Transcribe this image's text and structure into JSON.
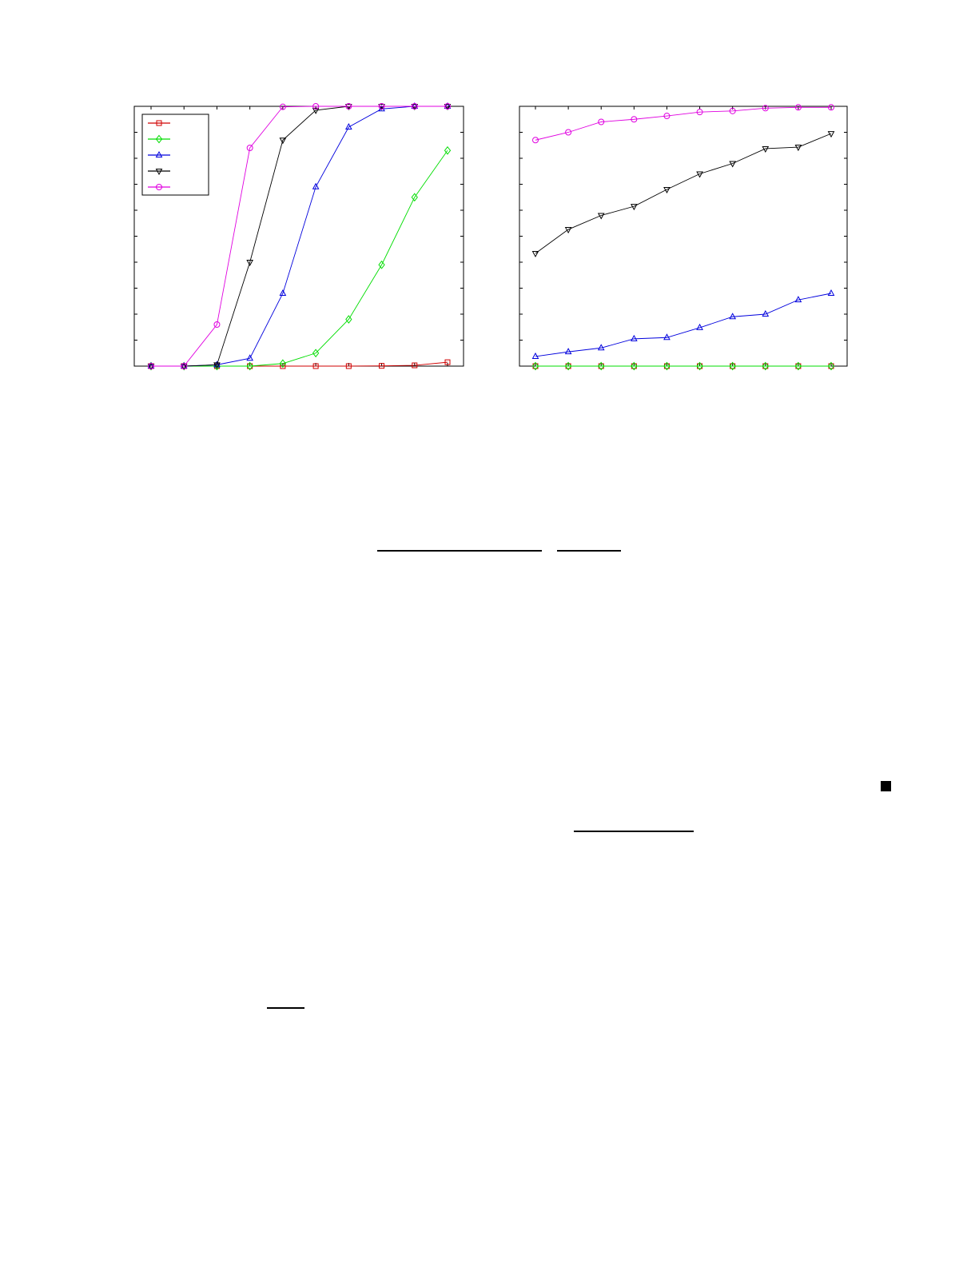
{
  "chart_data": [
    {
      "type": "line",
      "x": [
        1,
        2,
        3,
        4,
        5,
        6,
        7,
        8,
        9,
        10
      ],
      "ylim": [
        0,
        1
      ],
      "grid": false,
      "legend": {
        "placement": "top-left",
        "entries": 5
      },
      "series": [
        {
          "color": "#d00000",
          "marker": "square",
          "values": [
            0,
            0,
            0,
            0,
            0,
            0,
            0,
            0.001,
            0.003,
            0.015
          ]
        },
        {
          "color": "#00dd00",
          "marker": "diamond",
          "values": [
            0,
            0,
            0,
            0,
            0.01,
            0.05,
            0.18,
            0.39,
            0.65,
            0.83
          ]
        },
        {
          "color": "#0000dd",
          "marker": "triangle-up",
          "values": [
            0,
            0,
            0.005,
            0.03,
            0.28,
            0.69,
            0.92,
            0.99,
            1.0,
            1.0
          ]
        },
        {
          "color": "#000000",
          "marker": "triangle-down",
          "values": [
            0,
            0,
            0.005,
            0.4,
            0.87,
            0.985,
            1.0,
            1.0,
            1.0,
            1.0
          ]
        },
        {
          "color": "#e000e0",
          "marker": "circle",
          "values": [
            0,
            0,
            0.16,
            0.84,
            0.998,
            1.0,
            1.0,
            1.0,
            1.0,
            1.0
          ]
        }
      ]
    },
    {
      "type": "line",
      "x": [
        1,
        2,
        3,
        4,
        5,
        6,
        7,
        8,
        9,
        10
      ],
      "ylim": [
        0,
        1
      ],
      "grid": false,
      "series": [
        {
          "color": "#d00000",
          "marker": "square",
          "values": [
            0,
            0,
            0,
            0,
            0,
            0,
            0,
            0,
            0,
            0
          ]
        },
        {
          "color": "#00dd00",
          "marker": "diamond",
          "values": [
            0,
            0,
            0,
            0,
            0,
            0,
            0,
            0,
            0,
            0
          ]
        },
        {
          "color": "#0000dd",
          "marker": "triangle-up",
          "values": [
            0.037,
            0.055,
            0.07,
            0.105,
            0.11,
            0.148,
            0.19,
            0.2,
            0.255,
            0.28
          ]
        },
        {
          "color": "#000000",
          "marker": "triangle-down",
          "values": [
            0.434,
            0.526,
            0.58,
            0.615,
            0.68,
            0.74,
            0.78,
            0.837,
            0.843,
            0.895
          ]
        },
        {
          "color": "#e000e0",
          "marker": "circle",
          "values": [
            0.87,
            0.9,
            0.94,
            0.95,
            0.963,
            0.978,
            0.982,
            0.993,
            0.996,
            0.996
          ]
        }
      ]
    }
  ]
}
